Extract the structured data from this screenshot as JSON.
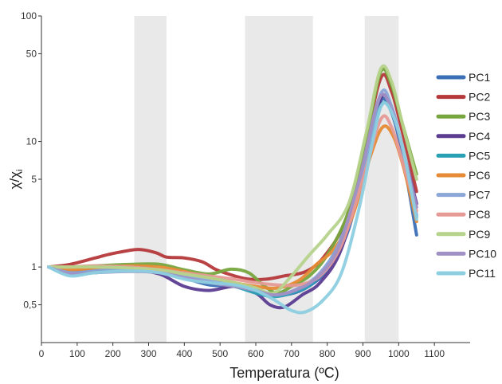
{
  "chart_data": {
    "type": "line",
    "xlabel": "Temperatura (ºC)",
    "ylabel_main": "χ/χ",
    "ylabel_sub": "i",
    "yscale": "log",
    "xlim": [
      0,
      1200
    ],
    "ylim": [
      0.25,
      100
    ],
    "x_ticks": [
      "0",
      "100",
      "200",
      "300",
      "400",
      "500",
      "600",
      "700",
      "800",
      "900",
      "1000",
      "1100"
    ],
    "y_ticks": [
      {
        "value": 0.5,
        "label": "0,5"
      },
      {
        "value": 1,
        "label": "1"
      },
      {
        "value": 5,
        "label": "5"
      },
      {
        "value": 10,
        "label": "10"
      },
      {
        "value": 50,
        "label": "50"
      },
      {
        "value": 100,
        "label": "100"
      }
    ],
    "shaded_bands": [
      [
        260,
        350
      ],
      [
        570,
        760
      ],
      [
        905,
        1000
      ]
    ],
    "legend_position": "right",
    "series": [
      {
        "name": "PC1",
        "color": "#3b6fb6",
        "points": [
          [
            20,
            1.0
          ],
          [
            80,
            0.92
          ],
          [
            150,
            0.95
          ],
          [
            250,
            1.0
          ],
          [
            330,
            0.95
          ],
          [
            400,
            0.82
          ],
          [
            470,
            0.72
          ],
          [
            550,
            0.7
          ],
          [
            620,
            0.63
          ],
          [
            680,
            0.6
          ],
          [
            740,
            0.68
          ],
          [
            800,
            0.95
          ],
          [
            860,
            2.0
          ],
          [
            910,
            8.0
          ],
          [
            950,
            21
          ],
          [
            980,
            17
          ],
          [
            1010,
            8
          ],
          [
            1050,
            1.8
          ]
        ]
      },
      {
        "name": "PC2",
        "color": "#b5383a",
        "points": [
          [
            20,
            1.0
          ],
          [
            80,
            1.05
          ],
          [
            150,
            1.18
          ],
          [
            200,
            1.28
          ],
          [
            270,
            1.38
          ],
          [
            320,
            1.3
          ],
          [
            350,
            1.2
          ],
          [
            400,
            1.18
          ],
          [
            450,
            1.1
          ],
          [
            490,
            0.95
          ],
          [
            540,
            0.85
          ],
          [
            580,
            0.8
          ],
          [
            630,
            0.8
          ],
          [
            680,
            0.85
          ],
          [
            740,
            0.92
          ],
          [
            790,
            1.2
          ],
          [
            850,
            2.3
          ],
          [
            900,
            8
          ],
          [
            950,
            32
          ],
          [
            980,
            25
          ],
          [
            1010,
            12
          ],
          [
            1050,
            4.0
          ]
        ]
      },
      {
        "name": "PC3",
        "color": "#77a63e",
        "points": [
          [
            20,
            1.0
          ],
          [
            80,
            1.0
          ],
          [
            150,
            1.02
          ],
          [
            250,
            1.05
          ],
          [
            330,
            1.05
          ],
          [
            400,
            0.95
          ],
          [
            470,
            0.88
          ],
          [
            530,
            0.96
          ],
          [
            580,
            0.9
          ],
          [
            620,
            0.72
          ],
          [
            660,
            0.62
          ],
          [
            700,
            0.7
          ],
          [
            750,
            0.85
          ],
          [
            800,
            1.25
          ],
          [
            860,
            2.8
          ],
          [
            910,
            11
          ],
          [
            950,
            36
          ],
          [
            980,
            28
          ],
          [
            1010,
            14
          ],
          [
            1050,
            5.5
          ]
        ]
      },
      {
        "name": "PC4",
        "color": "#5b3c91",
        "points": [
          [
            20,
            1.0
          ],
          [
            80,
            0.9
          ],
          [
            150,
            0.93
          ],
          [
            250,
            0.95
          ],
          [
            330,
            0.88
          ],
          [
            400,
            0.7
          ],
          [
            470,
            0.65
          ],
          [
            540,
            0.7
          ],
          [
            600,
            0.62
          ],
          [
            640,
            0.5
          ],
          [
            680,
            0.48
          ],
          [
            730,
            0.6
          ],
          [
            780,
            0.75
          ],
          [
            840,
            1.4
          ],
          [
            900,
            6
          ],
          [
            950,
            22
          ],
          [
            980,
            18
          ],
          [
            1010,
            9
          ],
          [
            1050,
            3.2
          ]
        ]
      },
      {
        "name": "PC5",
        "color": "#2aa0b5",
        "points": [
          [
            20,
            1.0
          ],
          [
            80,
            0.88
          ],
          [
            150,
            0.9
          ],
          [
            250,
            0.95
          ],
          [
            330,
            0.92
          ],
          [
            400,
            0.82
          ],
          [
            470,
            0.75
          ],
          [
            540,
            0.7
          ],
          [
            600,
            0.62
          ],
          [
            650,
            0.58
          ],
          [
            700,
            0.62
          ],
          [
            760,
            0.75
          ],
          [
            820,
            1.3
          ],
          [
            880,
            3.5
          ],
          [
            920,
            10
          ],
          [
            955,
            20
          ],
          [
            985,
            16
          ],
          [
            1015,
            8
          ],
          [
            1050,
            2.5
          ]
        ]
      },
      {
        "name": "PC6",
        "color": "#e68a36",
        "points": [
          [
            20,
            1.0
          ],
          [
            80,
            0.95
          ],
          [
            150,
            0.98
          ],
          [
            250,
            1.02
          ],
          [
            330,
            1.0
          ],
          [
            400,
            0.92
          ],
          [
            470,
            0.82
          ],
          [
            540,
            0.75
          ],
          [
            600,
            0.7
          ],
          [
            660,
            0.68
          ],
          [
            720,
            0.78
          ],
          [
            770,
            1.05
          ],
          [
            820,
            1.4
          ],
          [
            870,
            2.5
          ],
          [
            920,
            7.5
          ],
          [
            955,
            13
          ],
          [
            985,
            11
          ],
          [
            1015,
            6
          ],
          [
            1050,
            2.3
          ]
        ]
      },
      {
        "name": "PC7",
        "color": "#8aa7d8",
        "points": [
          [
            20,
            1.0
          ],
          [
            80,
            0.9
          ],
          [
            150,
            0.93
          ],
          [
            250,
            0.97
          ],
          [
            330,
            0.93
          ],
          [
            400,
            0.85
          ],
          [
            470,
            0.78
          ],
          [
            540,
            0.72
          ],
          [
            600,
            0.65
          ],
          [
            660,
            0.6
          ],
          [
            720,
            0.68
          ],
          [
            780,
            0.9
          ],
          [
            840,
            1.7
          ],
          [
            900,
            6
          ],
          [
            950,
            24
          ],
          [
            980,
            19
          ],
          [
            1010,
            9
          ],
          [
            1050,
            2.6
          ]
        ]
      },
      {
        "name": "PC8",
        "color": "#e59a96",
        "points": [
          [
            20,
            1.0
          ],
          [
            80,
            1.0
          ],
          [
            150,
            1.02
          ],
          [
            250,
            1.0
          ],
          [
            330,
            0.95
          ],
          [
            400,
            0.9
          ],
          [
            470,
            0.85
          ],
          [
            540,
            0.8
          ],
          [
            600,
            0.75
          ],
          [
            660,
            0.72
          ],
          [
            720,
            0.72
          ],
          [
            780,
            0.85
          ],
          [
            840,
            1.5
          ],
          [
            900,
            5
          ],
          [
            950,
            15
          ],
          [
            980,
            13
          ],
          [
            1010,
            7
          ],
          [
            1050,
            2.8
          ]
        ]
      },
      {
        "name": "PC9",
        "color": "#b6d38b",
        "points": [
          [
            20,
            1.0
          ],
          [
            80,
            1.0
          ],
          [
            150,
            1.0
          ],
          [
            250,
            0.98
          ],
          [
            330,
            0.95
          ],
          [
            400,
            0.88
          ],
          [
            470,
            0.82
          ],
          [
            540,
            0.75
          ],
          [
            600,
            0.68
          ],
          [
            650,
            0.62
          ],
          [
            700,
            0.85
          ],
          [
            750,
            1.25
          ],
          [
            800,
            1.8
          ],
          [
            860,
            3.2
          ],
          [
            910,
            12
          ],
          [
            950,
            38
          ],
          [
            980,
            30
          ],
          [
            1010,
            14
          ],
          [
            1050,
            5.0
          ]
        ]
      },
      {
        "name": "PC10",
        "color": "#a190c4",
        "points": [
          [
            20,
            1.0
          ],
          [
            80,
            0.88
          ],
          [
            150,
            0.9
          ],
          [
            250,
            0.92
          ],
          [
            330,
            0.9
          ],
          [
            400,
            0.82
          ],
          [
            470,
            0.75
          ],
          [
            540,
            0.7
          ],
          [
            600,
            0.65
          ],
          [
            650,
            0.6
          ],
          [
            710,
            0.65
          ],
          [
            770,
            0.82
          ],
          [
            830,
            1.4
          ],
          [
            890,
            5
          ],
          [
            945,
            22
          ],
          [
            980,
            18
          ],
          [
            1010,
            9
          ],
          [
            1050,
            3.0
          ]
        ]
      },
      {
        "name": "PC11",
        "color": "#8dcfe0",
        "points": [
          [
            20,
            1.0
          ],
          [
            80,
            0.85
          ],
          [
            150,
            0.9
          ],
          [
            250,
            0.93
          ],
          [
            330,
            0.9
          ],
          [
            400,
            0.8
          ],
          [
            470,
            0.75
          ],
          [
            540,
            0.72
          ],
          [
            600,
            0.65
          ],
          [
            650,
            0.55
          ],
          [
            700,
            0.45
          ],
          [
            740,
            0.44
          ],
          [
            790,
            0.55
          ],
          [
            840,
            0.9
          ],
          [
            890,
            3
          ],
          [
            930,
            11
          ],
          [
            955,
            20
          ],
          [
            985,
            16
          ],
          [
            1015,
            8
          ],
          [
            1050,
            2.4
          ]
        ]
      }
    ]
  }
}
